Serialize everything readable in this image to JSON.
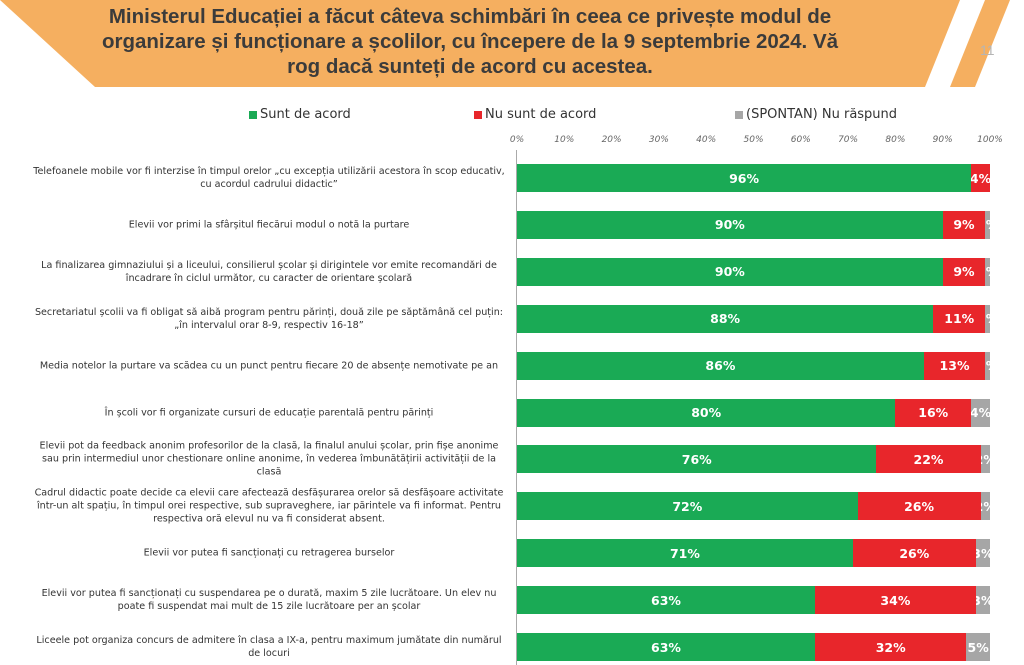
{
  "header": {
    "title": "Ministerul Educației a făcut câteva schimbări în ceea ce privește modul de organizare și funcționare a școlilor, cu începere de la 9 septembrie 2024. Vă rog dacă sunteți de acord cu acestea.",
    "page_number": "11"
  },
  "chart_data": {
    "type": "bar",
    "orientation": "horizontal-stacked-100",
    "title": "Ministerul Educației a făcut câteva schimbări în ceea ce privește modul de organizare și funcționare a școlilor, cu începere de la 9 septembrie 2024. Vă rog dacă sunteți de acord cu acestea.",
    "xlim": [
      0,
      100
    ],
    "ticks": [
      "0%",
      "10%",
      "20%",
      "30%",
      "40%",
      "50%",
      "60%",
      "70%",
      "80%",
      "90%",
      "100%"
    ],
    "legend_position": "top",
    "categories": [
      "Telefoanele  mobile vor fi interzise în timpul orelor „cu excepția utilizării acestora în scop educativ, cu acordul cadrului didactic”",
      "Elevii  vor primi la sfârșitul fiecărui modul  o notă la purtare",
      "La finalizarea gimnaziului  și a liceului,  consilierul școlar și dirigintele vor emite recomandări de încadrare în ciclul următor, cu caracter de orientare școlară",
      "Secretariatul școlii  va fi obligat  să aibă program pentru părinți, două  zile pe săptămână  cel puțin: „în intervalul orar 8-9, respectiv 16-18”",
      "Media notelor  la  purtare va scădea cu un punct  pentru fiecare 20 de absențe nemotivate  pe an",
      "În școli vor fi organizate cursuri de educație  parentală  pentru părinți",
      "Elevii  pot da feedback anonim  profesorilor de la clasă,  la  finalul  anului  școlar,  prin fișe anonime sau prin intermediul unor chestionare  online  anonime,  în vederea îmbunătățirii activității de la clasă",
      "Cadrul didactic poate decide ca elevii  care afectează  desfășurarea orelor să desfășoare activitate  într-un alt  spațiu,  în timpul orei respective,  sub supraveghere,  iar părintele va fi informat.  Pentru respectiva oră elevul  nu va fi considerat absent.",
      "Elevii  vor putea fi sancționați  cu retragerea burselor",
      "Elevii  vor putea fi sancționați  cu suspendarea  pe o durată,  maxim 5 zile lucrătoare.  Un elev  nu poate fi suspendat  mai mult  de 15 zile lucrătoare  per an școlar",
      "Liceele pot organiza concurs de admitere în clasa a IX-a,  pentru maximum jumătate din numărul de locuri"
    ],
    "series": [
      {
        "name": "Sunt de acord",
        "color": "#1AAA55",
        "values": [
          96,
          90,
          90,
          88,
          86,
          80,
          76,
          72,
          71,
          63,
          63
        ]
      },
      {
        "name": "Nu sunt de acord",
        "color": "#E8262B",
        "values": [
          4,
          9,
          9,
          11,
          13,
          16,
          22,
          26,
          26,
          34,
          32
        ]
      },
      {
        "name": "(SPONTAN) Nu răspund",
        "color": "#A6A6A6",
        "values": [
          0,
          1,
          1,
          1,
          1,
          4,
          2,
          2,
          3,
          3,
          5
        ]
      }
    ]
  }
}
